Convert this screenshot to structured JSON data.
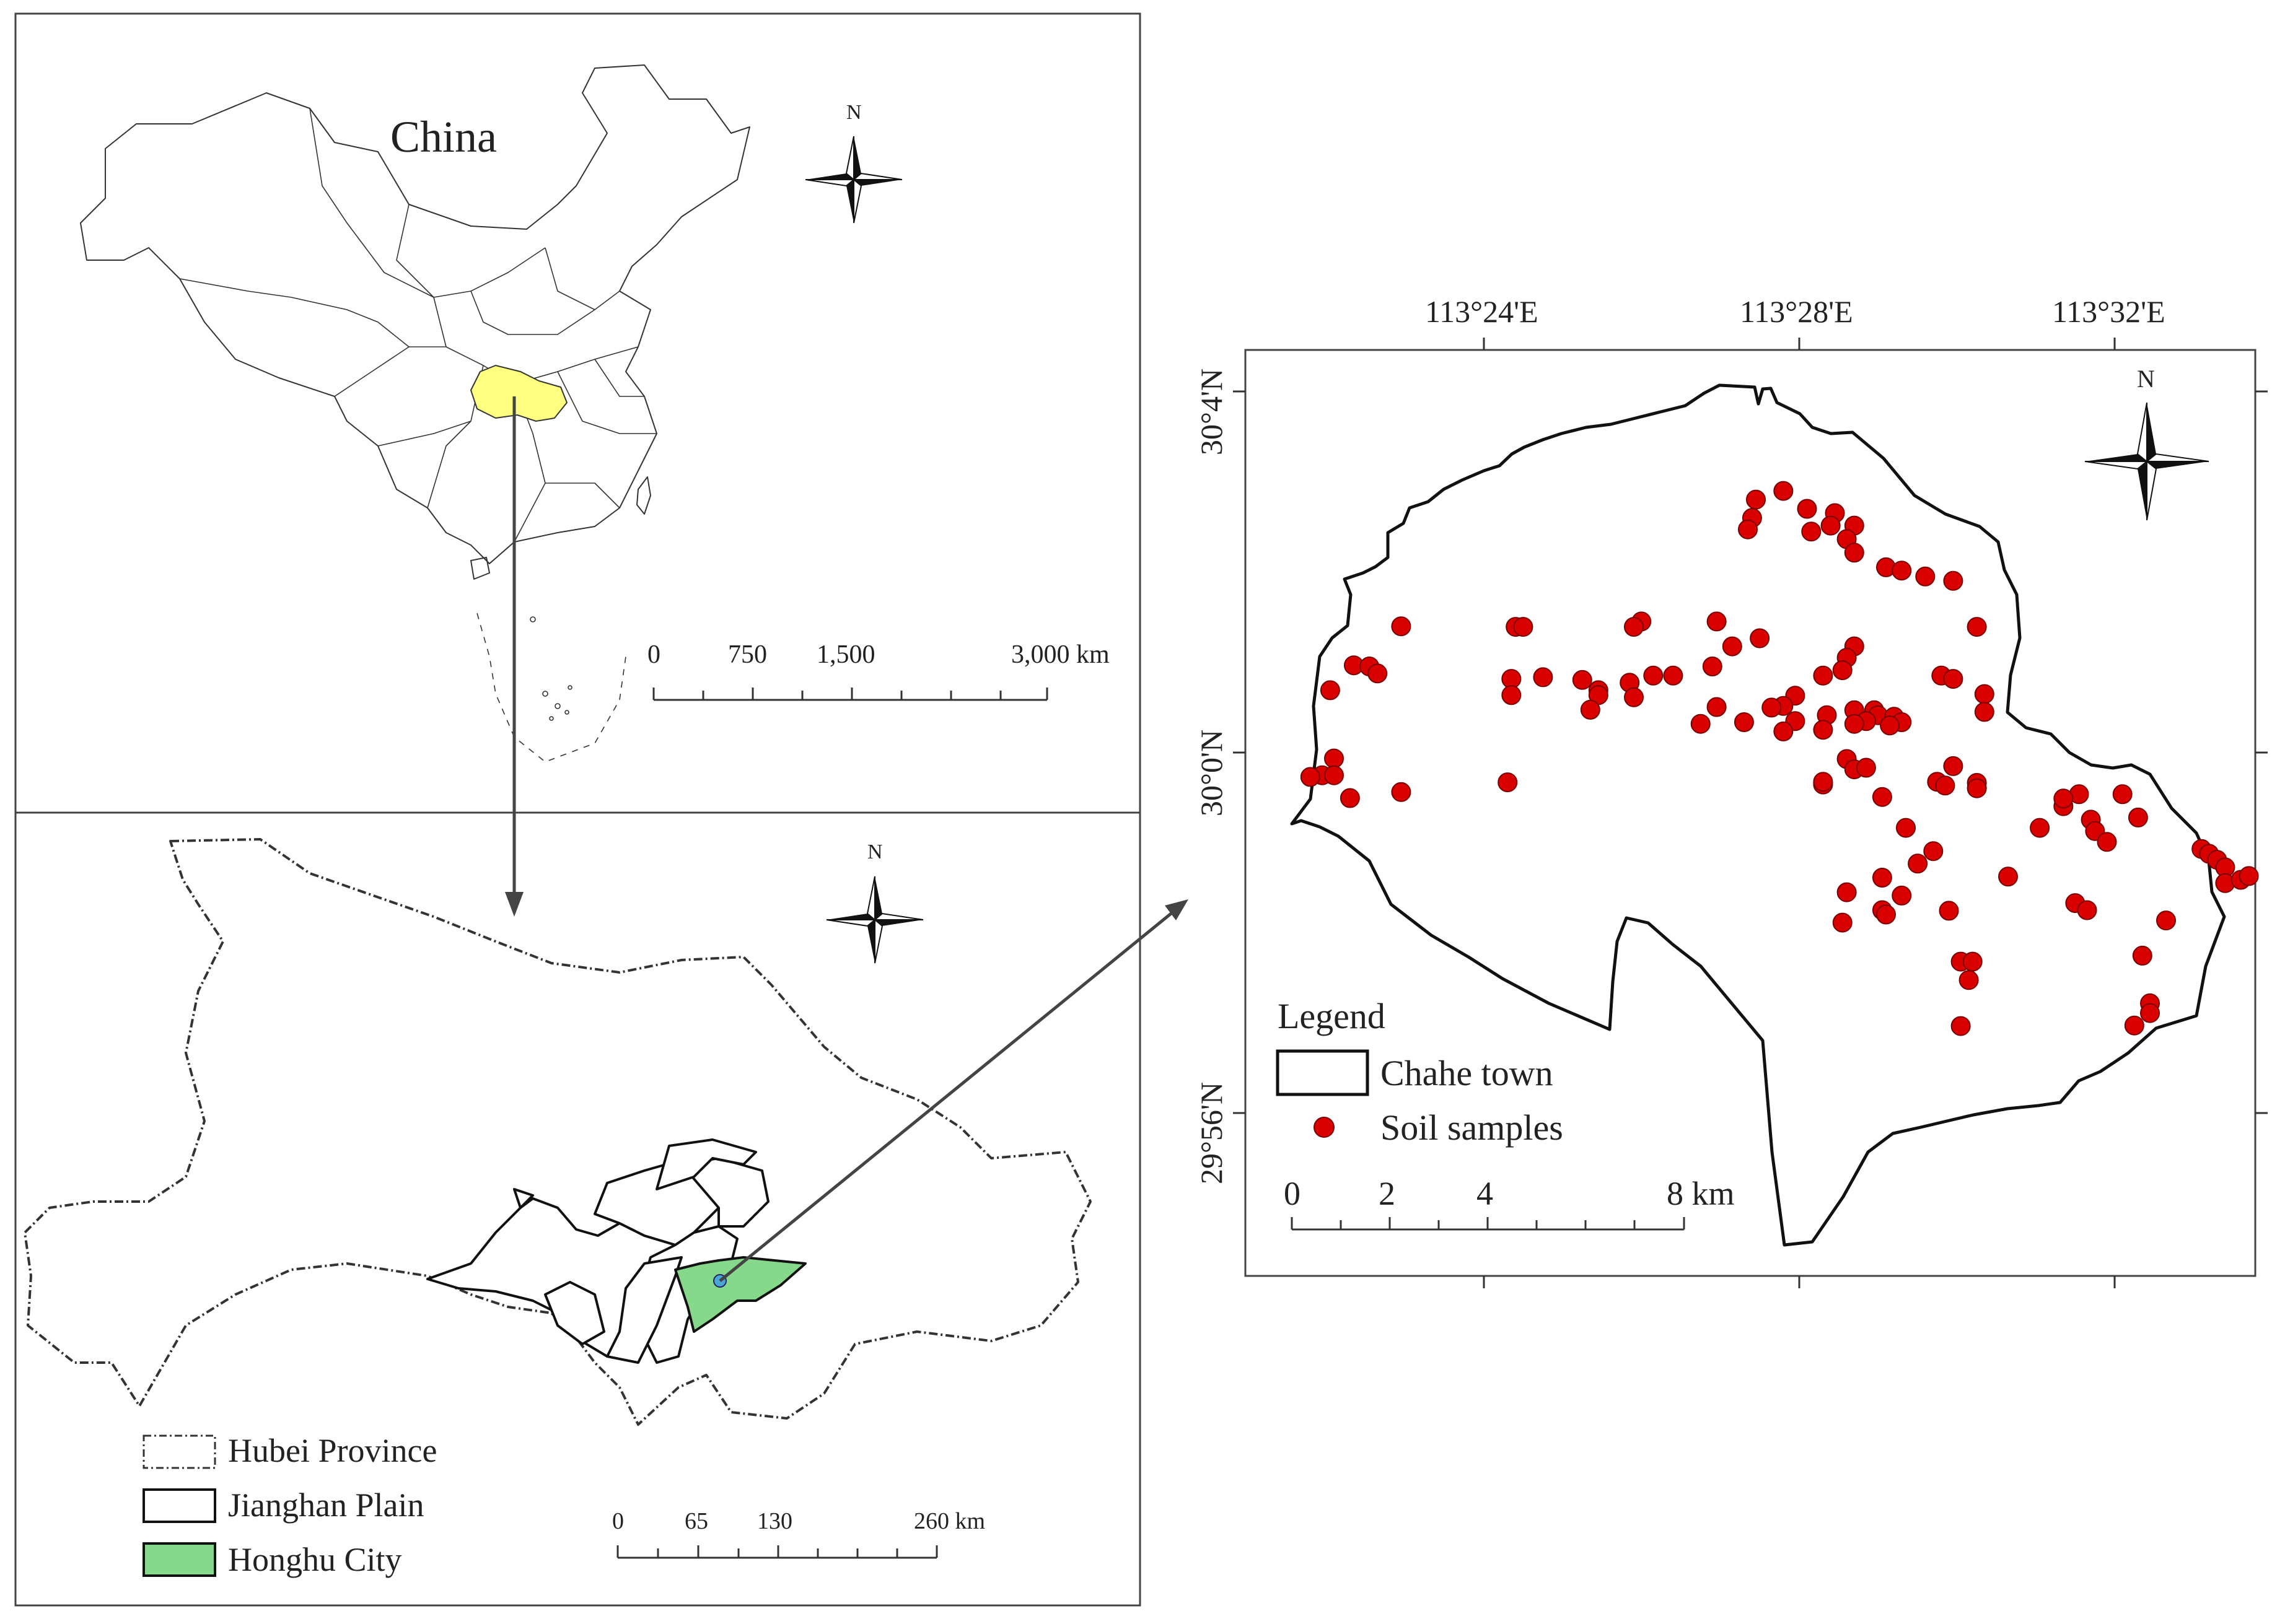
{
  "china_panel": {
    "title": "China",
    "north": "N",
    "scalebar": {
      "labels": [
        "0",
        "750",
        "1,500",
        "3,000 km"
      ],
      "ticks_km": [
        0,
        750,
        1500,
        3000
      ]
    }
  },
  "hubei_panel": {
    "north": "N",
    "scalebar": {
      "labels": [
        "0",
        "65",
        "130",
        "260 km"
      ],
      "ticks_km": [
        0,
        65,
        130,
        260
      ]
    },
    "legend": [
      {
        "label": "Hubei Province",
        "style": "dash-dot outline"
      },
      {
        "label": "Jianghan Plain",
        "style": "solid outline"
      },
      {
        "label": "Honghu City",
        "style": "filled",
        "color": "#86d88a"
      }
    ]
  },
  "detail_panel": {
    "north": "N",
    "lon_ticks": [
      "113°24'E",
      "113°28'E",
      "113°32'E"
    ],
    "lat_ticks": [
      "30°4'N",
      "30°0'N",
      "29°56'N"
    ],
    "legend_title": "Legend",
    "legend": [
      {
        "label": "Chahe town",
        "style": "solid outline"
      },
      {
        "label": "Soil samples",
        "style": "red dot",
        "color": "#d90000"
      }
    ],
    "scalebar": {
      "labels": [
        "0",
        "2",
        "4",
        "8 km"
      ],
      "ticks_km": [
        0,
        2,
        4,
        8
      ]
    },
    "soil_samples": [
      [
        113.4575,
        30.0467
      ],
      [
        113.4633,
        30.0483
      ],
      [
        113.4683,
        30.045
      ],
      [
        113.4742,
        30.0442
      ],
      [
        113.4733,
        30.0419
      ],
      [
        113.4692,
        30.0408
      ],
      [
        113.4567,
        30.0433
      ],
      [
        113.4558,
        30.0412
      ],
      [
        113.4783,
        30.0419
      ],
      [
        113.4767,
        30.0394
      ],
      [
        113.4783,
        30.0369
      ],
      [
        113.485,
        30.0342
      ],
      [
        113.4883,
        30.0336
      ],
      [
        113.4933,
        30.0325
      ],
      [
        113.4992,
        30.0317
      ],
      [
        113.4492,
        30.0242
      ],
      [
        113.4333,
        30.0242
      ],
      [
        113.4317,
        30.0232
      ],
      [
        113.4583,
        30.0211
      ],
      [
        113.4525,
        30.0196
      ],
      [
        113.4483,
        30.0159
      ],
      [
        113.44,
        30.0142
      ],
      [
        113.4358,
        30.0142
      ],
      [
        113.4308,
        30.0129
      ],
      [
        113.4242,
        30.0115
      ],
      [
        113.4242,
        30.0106
      ],
      [
        113.4317,
        30.0102
      ],
      [
        113.4783,
        30.0196
      ],
      [
        113.4767,
        30.0175
      ],
      [
        113.4758,
        30.0152
      ],
      [
        113.4717,
        30.0142
      ],
      [
        113.4967,
        30.0142
      ],
      [
        113.4992,
        30.0136
      ],
      [
        113.5042,
        30.0232
      ],
      [
        113.5058,
        30.0108
      ],
      [
        113.5058,
        30.0075
      ],
      [
        113.4658,
        30.0105
      ],
      [
        113.4633,
        30.0086
      ],
      [
        113.4658,
        30.0058
      ],
      [
        113.4608,
        30.0083
      ],
      [
        113.4725,
        30.0069
      ],
      [
        113.4717,
        30.0042
      ],
      [
        113.455,
        30.0056
      ],
      [
        113.4225,
        30.0079
      ],
      [
        113.4633,
        30.0039
      ],
      [
        113.4783,
        30.0078
      ],
      [
        113.4825,
        30.0078
      ],
      [
        113.4833,
        30.0069
      ],
      [
        113.4867,
        30.0066
      ],
      [
        113.4808,
        30.0058
      ],
      [
        113.4883,
        30.0056
      ],
      [
        113.4783,
        30.0053
      ],
      [
        113.4858,
        30.005
      ],
      [
        113.4992,
        29.9975
      ],
      [
        113.4767,
        29.9988
      ],
      [
        113.4783,
        29.9969
      ],
      [
        113.4808,
        29.9972
      ],
      [
        113.4717,
        29.9941
      ],
      [
        113.4717,
        29.9946
      ],
      [
        113.4842,
        29.9918
      ],
      [
        113.4958,
        29.9946
      ],
      [
        113.4975,
        29.9939
      ],
      [
        113.5042,
        29.9944
      ],
      [
        113.5042,
        29.9934
      ],
      [
        113.4892,
        29.9861
      ],
      [
        113.3825,
        30.0233
      ],
      [
        113.3725,
        30.0161
      ],
      [
        113.3758,
        30.0159
      ],
      [
        113.3775,
        30.0146
      ],
      [
        113.3675,
        30.0115
      ],
      [
        113.3683,
        29.9989
      ],
      [
        113.3658,
        29.9958
      ],
      [
        113.3683,
        29.9958
      ],
      [
        113.3633,
        29.9955
      ],
      [
        113.3717,
        29.9916
      ],
      [
        113.3825,
        29.9927
      ],
      [
        113.4067,
        30.0232
      ],
      [
        113.4083,
        30.0232
      ],
      [
        113.4058,
        30.0136
      ],
      [
        113.4058,
        30.0106
      ],
      [
        113.405,
        29.9945
      ],
      [
        113.4125,
        30.0139
      ],
      [
        113.4208,
        30.0134
      ],
      [
        113.4458,
        30.0053
      ],
      [
        113.4492,
        30.0084
      ],
      [
        113.495,
        29.9818
      ],
      [
        113.4842,
        29.9769
      ],
      [
        113.4883,
        29.9736
      ],
      [
        113.4842,
        29.9709
      ],
      [
        113.485,
        29.9701
      ],
      [
        113.4767,
        29.9742
      ],
      [
        113.4758,
        29.9686
      ],
      [
        113.4917,
        29.9795
      ],
      [
        113.4983,
        29.9708
      ],
      [
        113.5008,
        29.9614
      ],
      [
        113.5025,
        29.958
      ],
      [
        113.5008,
        29.9495
      ],
      [
        113.5033,
        29.9614
      ],
      [
        113.5108,
        29.9771
      ],
      [
        113.5175,
        29.9861
      ],
      [
        113.5225,
        29.9901
      ],
      [
        113.5258,
        29.9923
      ],
      [
        113.5225,
        29.9915
      ],
      [
        113.5283,
        29.9876
      ],
      [
        113.5292,
        29.9855
      ],
      [
        113.525,
        29.9722
      ],
      [
        113.5275,
        29.9709
      ],
      [
        113.5317,
        29.9835
      ],
      [
        113.535,
        29.9923
      ],
      [
        113.5383,
        29.988
      ],
      [
        113.5392,
        29.9625
      ],
      [
        113.5442,
        29.969
      ],
      [
        113.5517,
        29.9822
      ],
      [
        113.5533,
        29.9813
      ],
      [
        113.555,
        29.9802
      ],
      [
        113.5567,
        29.9788
      ],
      [
        113.5567,
        29.9759
      ],
      [
        113.56,
        29.9765
      ],
      [
        113.5617,
        29.9772
      ],
      [
        113.5408,
        29.9537
      ],
      [
        113.5408,
        29.9519
      ],
      [
        113.5375,
        29.9496
      ]
    ]
  }
}
